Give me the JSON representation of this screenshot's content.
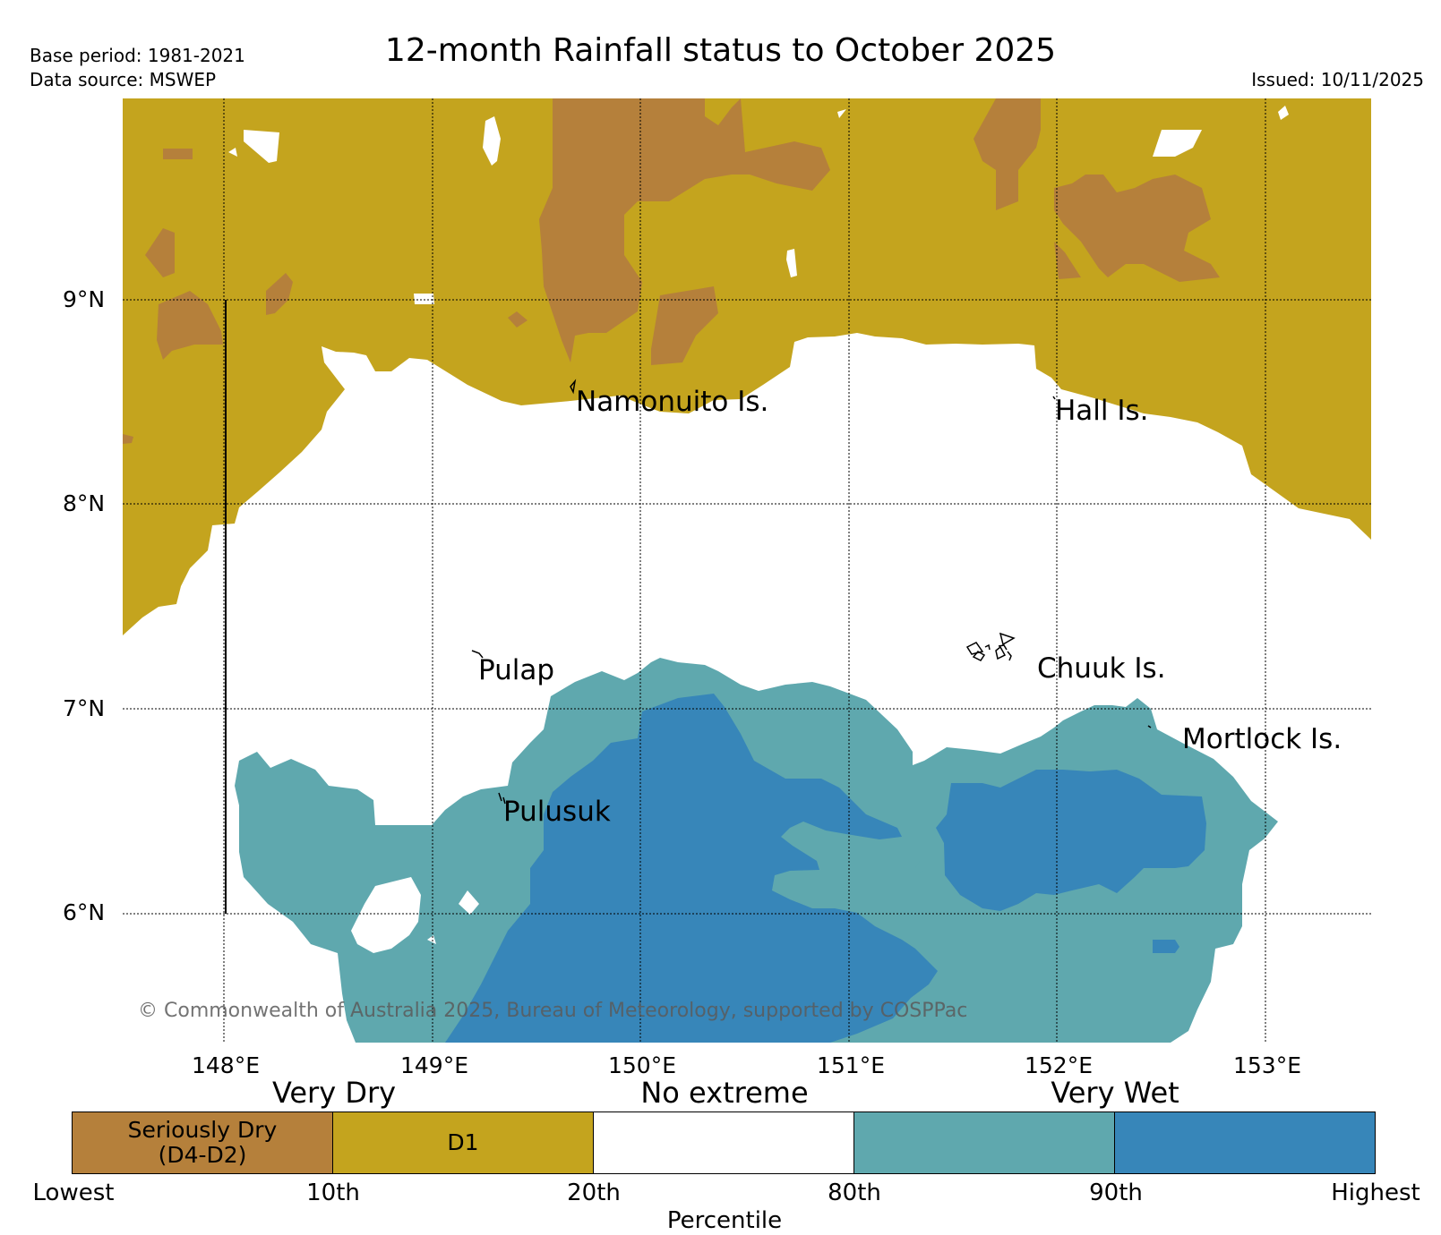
{
  "header": {
    "base_period": "Base period: 1981-2021",
    "data_source": "Data source: MSWEP",
    "title": "12-month Rainfall status to October 2025",
    "issued": "Issued: 10/11/2025"
  },
  "map": {
    "lat_labels": [
      "9°N",
      "8°N",
      "7°N",
      "6°N"
    ],
    "lon_labels": [
      "148°E",
      "149°E",
      "150°E",
      "151°E",
      "152°E",
      "153°E"
    ],
    "places": {
      "namonuito": "Namonuito Is.",
      "hall": "Hall Is.",
      "pulap": "Pulap",
      "chuuk": "Chuuk Is.",
      "mortlock": "Mortlock Is.",
      "pulusuk": "Pulusuk"
    },
    "copyright": "© Commonwealth of Australia 2025, Bureau of Meteorology, supported by COSPPac",
    "colors": {
      "seriously_dry": "#b5803b",
      "d1": "#c4a41e",
      "no_extreme": "#ffffff",
      "wet_80_90": "#5fa8ae",
      "wet_90_plus": "#3786b9"
    }
  },
  "legend": {
    "very_dry": "Very Dry",
    "no_extreme": "No extreme",
    "very_wet": "Very Wet",
    "seg_seriously_dry_line1": "Seriously Dry",
    "seg_seriously_dry_line2": "(D4-D2)",
    "seg_d1": "D1",
    "ticks": [
      "Lowest",
      "10th",
      "20th",
      "80th",
      "90th",
      "Highest"
    ],
    "axis_label": "Percentile"
  }
}
